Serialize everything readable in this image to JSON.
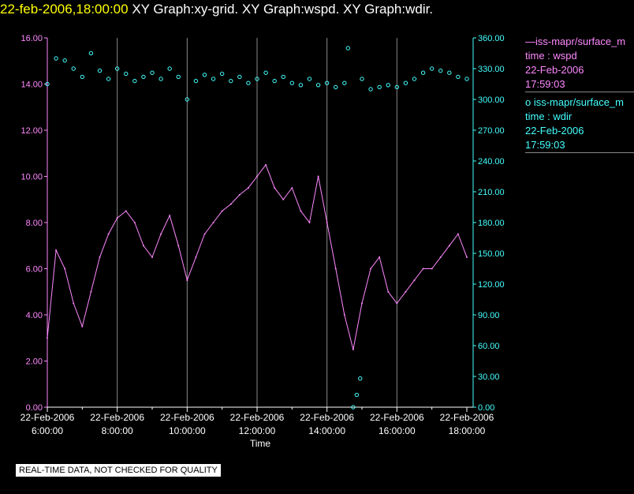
{
  "title": {
    "datetime": "22-feb-2006,18:00:00",
    "graphs": "XY Graph:xy-grid.  XY Graph:wspd.  XY Graph:wdir."
  },
  "legend": [
    {
      "line": "—iss-mapr/surface_m",
      "field": "time : wspd",
      "date": "22-Feb-2006",
      "time": "17:59:03"
    },
    {
      "line": "o  iss-mapr/surface_m",
      "field": "time : wdir",
      "date": "22-Feb-2006",
      "time": "17:59:03"
    }
  ],
  "quality_note": "REAL-TIME DATA, NOT CHECKED FOR QUALITY",
  "colors": {
    "wspd": "#ff88ff",
    "wdir": "#44ffff",
    "grid": "#8a8a8a",
    "title_date": "#ffff00"
  },
  "chart_data": {
    "type": "line",
    "xlabel": "Time",
    "x_ticks": [
      {
        "date": "22-Feb-2006",
        "time": "6:00:00",
        "hour": 6
      },
      {
        "date": "22-Feb-2006",
        "time": "8:00:00",
        "hour": 8
      },
      {
        "date": "22-Feb-2006",
        "time": "10:00:00",
        "hour": 10
      },
      {
        "date": "22-Feb-2006",
        "time": "12:00:00",
        "hour": 12
      },
      {
        "date": "22-Feb-2006",
        "time": "14:00:00",
        "hour": 14
      },
      {
        "date": "22-Feb-2006",
        "time": "16:00:00",
        "hour": 16
      },
      {
        "date": "22-Feb-2006",
        "time": "18:00:00",
        "hour": 18
      }
    ],
    "xlim": [
      6,
      18
    ],
    "y_left": {
      "ylim": [
        0,
        16
      ],
      "ticks": [
        "0.00",
        "2.00",
        "4.00",
        "6.00",
        "8.00",
        "10.00",
        "12.00",
        "14.00",
        "16.00"
      ]
    },
    "y_right": {
      "ylim": [
        0,
        360
      ],
      "ticks": [
        "0.00",
        "30.00",
        "60.00",
        "90.00",
        "120.00",
        "150.00",
        "180.00",
        "210.00",
        "240.00",
        "270.00",
        "300.00",
        "330.00",
        "360.00"
      ]
    },
    "grid": "vertical",
    "legend_position": "right",
    "series": [
      {
        "axis": "left",
        "style": "line",
        "color": "#ff88ff",
        "x": [
          6.0,
          6.25,
          6.5,
          6.75,
          7.0,
          7.25,
          7.5,
          7.75,
          8.0,
          8.25,
          8.5,
          8.75,
          9.0,
          9.25,
          9.5,
          9.75,
          10.0,
          10.25,
          10.5,
          10.75,
          11.0,
          11.25,
          11.5,
          11.75,
          12.0,
          12.25,
          12.5,
          12.75,
          13.0,
          13.25,
          13.5,
          13.75,
          14.0,
          14.25,
          14.5,
          14.75,
          15.0,
          15.25,
          15.5,
          15.75,
          16.0,
          16.25,
          16.5,
          16.75,
          17.0,
          17.25,
          17.5,
          17.75,
          18.0
        ],
        "values": [
          3.0,
          6.8,
          6.0,
          4.5,
          3.5,
          5.0,
          6.5,
          7.5,
          8.2,
          8.5,
          8.0,
          7.0,
          6.5,
          7.5,
          8.3,
          7.0,
          5.5,
          6.5,
          7.5,
          8.0,
          8.5,
          8.8,
          9.2,
          9.5,
          10.0,
          10.5,
          9.5,
          9.0,
          9.5,
          8.5,
          8.0,
          10.0,
          8.0,
          6.0,
          4.0,
          2.5,
          4.5,
          6.0,
          6.5,
          5.0,
          4.5,
          5.0,
          5.5,
          6.0,
          6.0,
          6.5,
          7.0,
          7.5,
          6.5
        ]
      },
      {
        "axis": "right",
        "style": "points",
        "color": "#44ffff",
        "x": [
          6.0,
          6.25,
          6.5,
          6.75,
          7.0,
          7.25,
          7.5,
          7.75,
          8.0,
          8.25,
          8.5,
          8.75,
          9.0,
          9.25,
          9.5,
          9.75,
          10.0,
          10.25,
          10.5,
          10.75,
          11.0,
          11.25,
          11.5,
          11.75,
          12.0,
          12.25,
          12.5,
          12.75,
          13.0,
          13.25,
          13.5,
          13.75,
          14.0,
          14.25,
          14.5,
          14.6,
          14.75,
          14.85,
          14.95,
          15.0,
          15.25,
          15.5,
          15.75,
          16.0,
          16.25,
          16.5,
          16.75,
          17.0,
          17.25,
          17.5,
          17.75,
          18.0
        ],
        "values": [
          315,
          340,
          338,
          330,
          322,
          345,
          328,
          320,
          330,
          325,
          318,
          322,
          326,
          320,
          330,
          322,
          300,
          318,
          324,
          320,
          325,
          318,
          322,
          316,
          320,
          326,
          318,
          322,
          316,
          314,
          320,
          314,
          316,
          312,
          316,
          350,
          0,
          12,
          28,
          320,
          310,
          312,
          314,
          312,
          316,
          320,
          326,
          330,
          328,
          326,
          322,
          320
        ]
      }
    ]
  }
}
